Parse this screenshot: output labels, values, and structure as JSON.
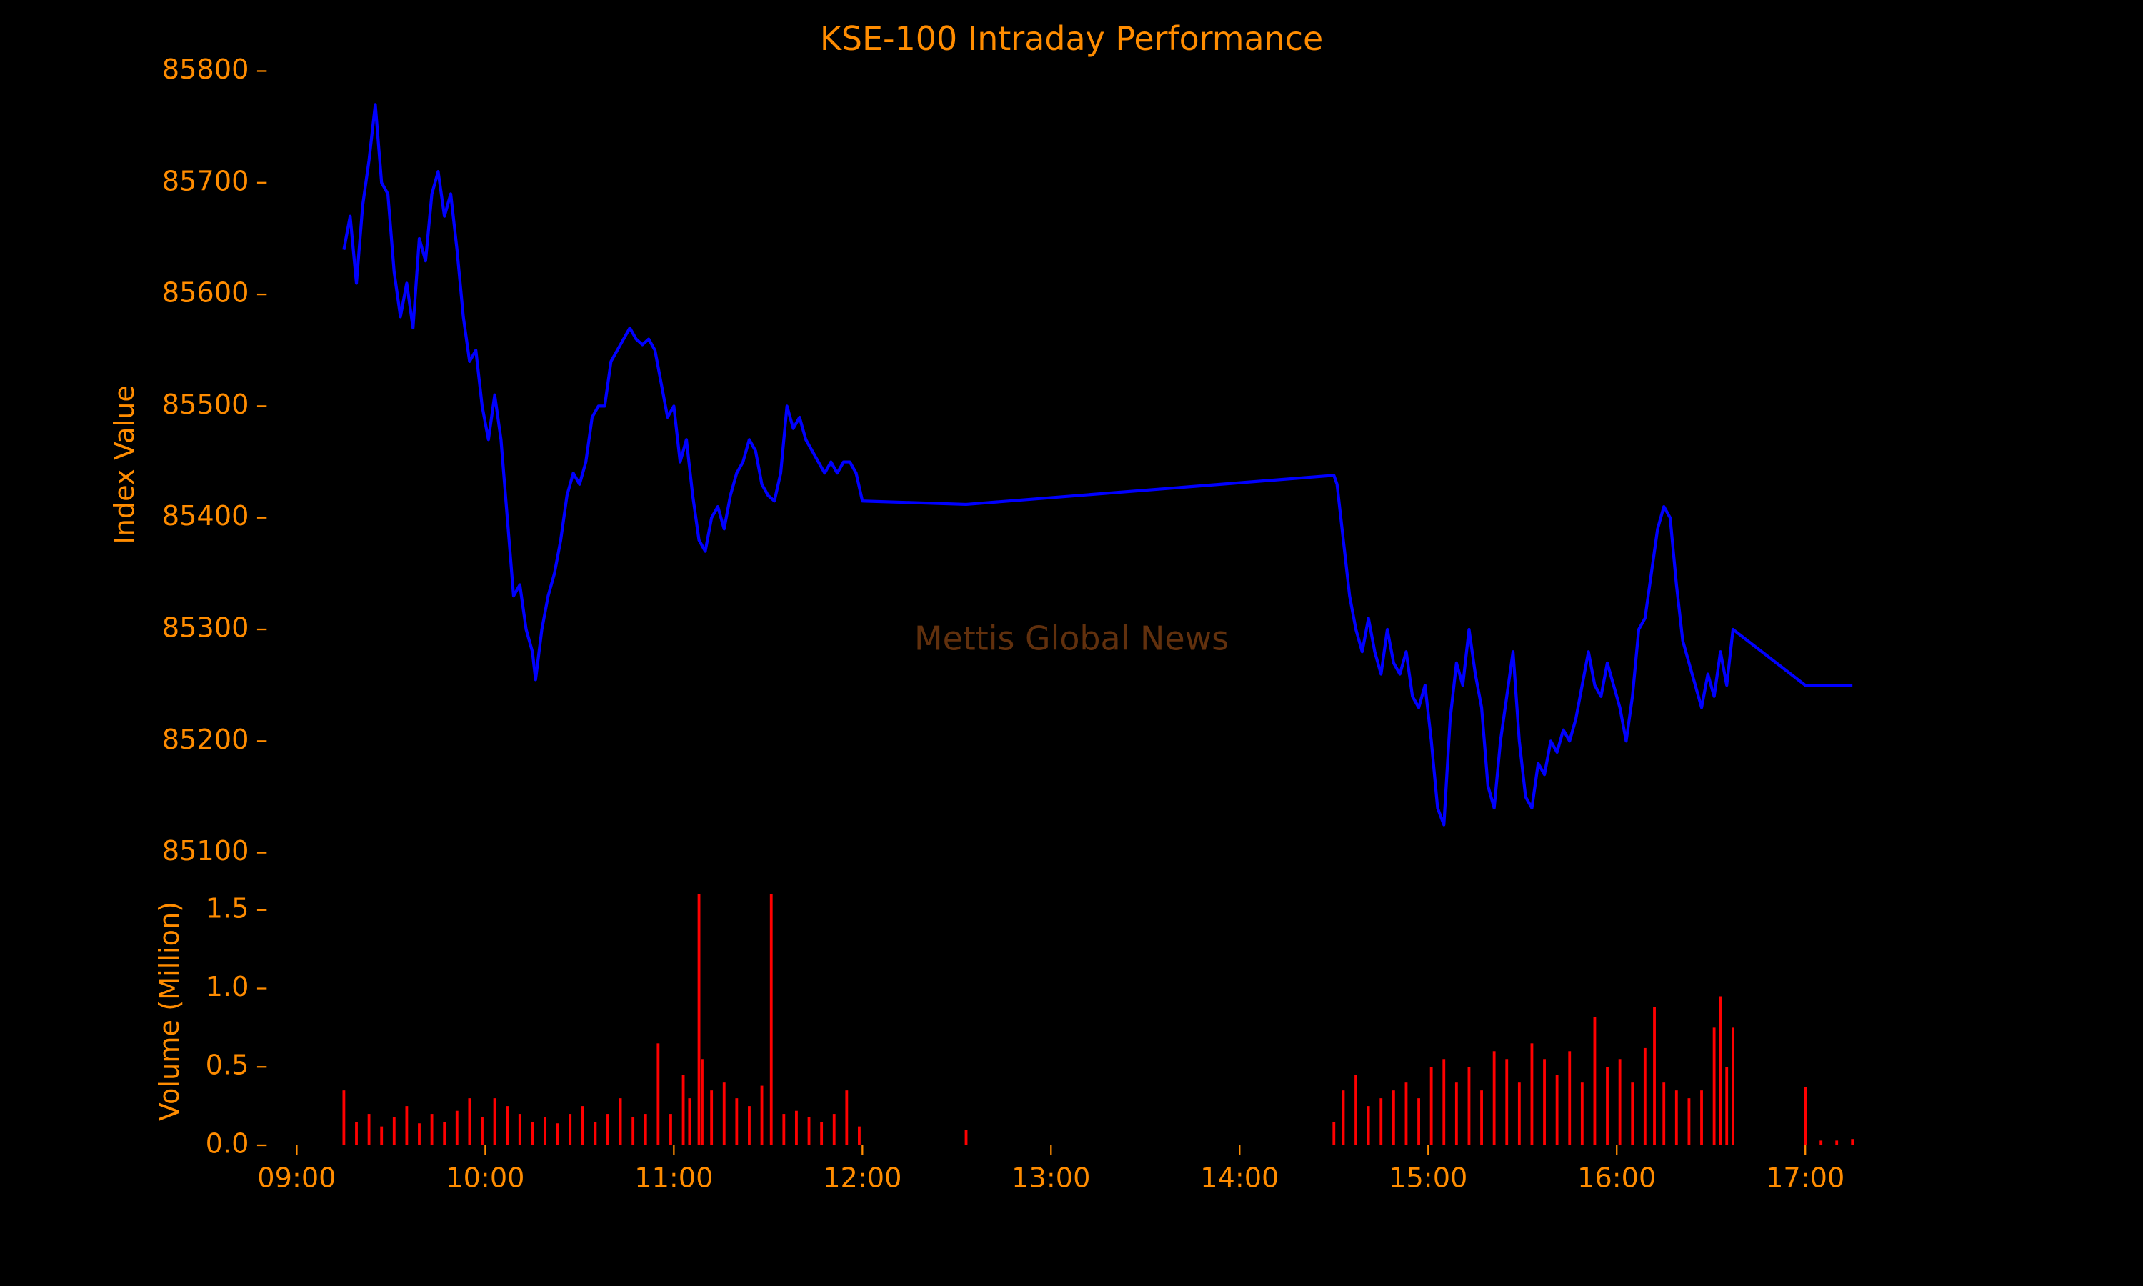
{
  "chart_data": [
    {
      "type": "line",
      "title": "KSE-100 Intraday Performance",
      "ylabel": "Index Value",
      "annotation": "Mettis Global News",
      "color": "#0000ff",
      "xlim": [
        "08:51",
        "17:39"
      ],
      "ylim": [
        85100,
        85800
      ],
      "yticks": [
        85100,
        85200,
        85300,
        85400,
        85500,
        85600,
        85700,
        85800
      ],
      "x": [
        "09:15",
        "09:17",
        "09:19",
        "09:21",
        "09:23",
        "09:25",
        "09:27",
        "09:29",
        "09:31",
        "09:33",
        "09:35",
        "09:37",
        "09:39",
        "09:41",
        "09:43",
        "09:45",
        "09:47",
        "09:49",
        "09:51",
        "09:53",
        "09:55",
        "09:57",
        "09:59",
        "10:01",
        "10:03",
        "10:05",
        "10:07",
        "10:09",
        "10:11",
        "10:13",
        "10:15",
        "10:16",
        "10:18",
        "10:20",
        "10:22",
        "10:24",
        "10:26",
        "10:28",
        "10:30",
        "10:32",
        "10:34",
        "10:36",
        "10:38",
        "10:40",
        "10:42",
        "10:44",
        "10:46",
        "10:48",
        "10:50",
        "10:52",
        "10:54",
        "10:56",
        "10:58",
        "11:00",
        "11:02",
        "11:04",
        "11:06",
        "11:08",
        "11:10",
        "11:12",
        "11:14",
        "11:16",
        "11:18",
        "11:20",
        "11:22",
        "11:24",
        "11:26",
        "11:28",
        "11:30",
        "11:32",
        "11:34",
        "11:36",
        "11:38",
        "11:40",
        "11:42",
        "11:44",
        "11:46",
        "11:48",
        "11:50",
        "11:52",
        "11:54",
        "11:56",
        "11:58",
        "12:00",
        "12:33",
        "14:30",
        "14:31",
        "14:33",
        "14:35",
        "14:37",
        "14:39",
        "14:41",
        "14:43",
        "14:45",
        "14:47",
        "14:49",
        "14:51",
        "14:53",
        "14:55",
        "14:57",
        "14:59",
        "15:01",
        "15:03",
        "15:05",
        "15:07",
        "15:09",
        "15:11",
        "15:13",
        "15:15",
        "15:17",
        "15:19",
        "15:21",
        "15:23",
        "15:25",
        "15:27",
        "15:29",
        "15:31",
        "15:33",
        "15:35",
        "15:37",
        "15:39",
        "15:41",
        "15:43",
        "15:45",
        "15:47",
        "15:49",
        "15:51",
        "15:53",
        "15:55",
        "15:57",
        "15:59",
        "16:01",
        "16:03",
        "16:05",
        "16:07",
        "16:09",
        "16:11",
        "16:13",
        "16:15",
        "16:17",
        "16:19",
        "16:21",
        "16:23",
        "16:25",
        "16:27",
        "16:29",
        "16:31",
        "16:33",
        "16:35",
        "16:37",
        "17:00",
        "17:15"
      ],
      "values": [
        85640,
        85670,
        85610,
        85680,
        85720,
        85770,
        85700,
        85690,
        85620,
        85580,
        85610,
        85570,
        85650,
        85630,
        85690,
        85710,
        85670,
        85690,
        85640,
        85580,
        85540,
        85550,
        85500,
        85470,
        85510,
        85470,
        85400,
        85330,
        85340,
        85300,
        85280,
        85255,
        85300,
        85330,
        85350,
        85380,
        85420,
        85440,
        85430,
        85450,
        85490,
        85500,
        85500,
        85540,
        85550,
        85560,
        85570,
        85560,
        85555,
        85560,
        85550,
        85520,
        85490,
        85500,
        85450,
        85470,
        85420,
        85380,
        85370,
        85400,
        85410,
        85390,
        85420,
        85440,
        85450,
        85470,
        85460,
        85430,
        85420,
        85415,
        85440,
        85500,
        85480,
        85490,
        85470,
        85460,
        85450,
        85440,
        85450,
        85440,
        85450,
        85450,
        85440,
        85415,
        85412,
        85438,
        85430,
        85380,
        85330,
        85300,
        85280,
        85310,
        85280,
        85260,
        85300,
        85270,
        85260,
        85280,
        85240,
        85230,
        85250,
        85200,
        85140,
        85125,
        85220,
        85270,
        85250,
        85300,
        85260,
        85230,
        85160,
        85140,
        85200,
        85240,
        85280,
        85200,
        85150,
        85140,
        85180,
        85170,
        85200,
        85190,
        85210,
        85200,
        85220,
        85250,
        85280,
        85250,
        85240,
        85270,
        85250,
        85230,
        85200,
        85240,
        85300,
        85310,
        85350,
        85390,
        85410,
        85400,
        85340,
        85290,
        85270,
        85250,
        85230,
        85260,
        85240,
        85280,
        85250,
        85300,
        85250,
        85250
      ]
    },
    {
      "type": "bar",
      "ylabel": "Volume (Million)",
      "color": "#ff0000",
      "xlim": [
        "08:51",
        "17:39"
      ],
      "xticks": [
        "09:00",
        "10:00",
        "11:00",
        "12:00",
        "13:00",
        "14:00",
        "15:00",
        "16:00",
        "17:00"
      ],
      "ylim": [
        0,
        1.65
      ],
      "yticks": [
        {
          "value": 0,
          "label": "0.0"
        },
        0.5,
        {
          "value": 1,
          "label": "1.0"
        },
        1.5
      ],
      "x": [
        "09:15",
        "09:19",
        "09:23",
        "09:27",
        "09:31",
        "09:35",
        "09:39",
        "09:43",
        "09:47",
        "09:51",
        "09:55",
        "09:59",
        "10:03",
        "10:07",
        "10:11",
        "10:15",
        "10:19",
        "10:23",
        "10:27",
        "10:31",
        "10:35",
        "10:39",
        "10:43",
        "10:47",
        "10:51",
        "10:55",
        "10:59",
        "11:03",
        "11:05",
        "11:08",
        "11:09",
        "11:12",
        "11:16",
        "11:20",
        "11:24",
        "11:28",
        "11:31",
        "11:35",
        "11:39",
        "11:43",
        "11:47",
        "11:51",
        "11:55",
        "11:59",
        "12:33",
        "14:30",
        "14:33",
        "14:37",
        "14:41",
        "14:45",
        "14:49",
        "14:53",
        "14:57",
        "15:01",
        "15:05",
        "15:09",
        "15:13",
        "15:17",
        "15:21",
        "15:25",
        "15:29",
        "15:33",
        "15:37",
        "15:41",
        "15:45",
        "15:49",
        "15:53",
        "15:57",
        "16:01",
        "16:05",
        "16:09",
        "16:12",
        "16:15",
        "16:19",
        "16:23",
        "16:27",
        "16:31",
        "16:33",
        "16:35",
        "16:37",
        "17:00",
        "17:05",
        "17:10",
        "17:15"
      ],
      "values": [
        0.35,
        0.15,
        0.2,
        0.12,
        0.18,
        0.25,
        0.14,
        0.2,
        0.15,
        0.22,
        0.3,
        0.18,
        0.3,
        0.25,
        0.2,
        0.15,
        0.18,
        0.14,
        0.2,
        0.25,
        0.15,
        0.2,
        0.3,
        0.18,
        0.2,
        0.65,
        0.2,
        0.45,
        0.3,
        1.6,
        0.55,
        0.35,
        0.4,
        0.3,
        0.25,
        0.38,
        1.6,
        0.2,
        0.22,
        0.18,
        0.15,
        0.2,
        0.35,
        0.12,
        0.1,
        0.15,
        0.35,
        0.45,
        0.25,
        0.3,
        0.35,
        0.4,
        0.3,
        0.5,
        0.55,
        0.4,
        0.5,
        0.35,
        0.6,
        0.55,
        0.4,
        0.65,
        0.55,
        0.45,
        0.6,
        0.4,
        0.82,
        0.5,
        0.55,
        0.4,
        0.62,
        0.88,
        0.4,
        0.35,
        0.3,
        0.35,
        0.75,
        0.95,
        0.5,
        0.75,
        0.37,
        0.03,
        0.03,
        0.04
      ]
    }
  ]
}
